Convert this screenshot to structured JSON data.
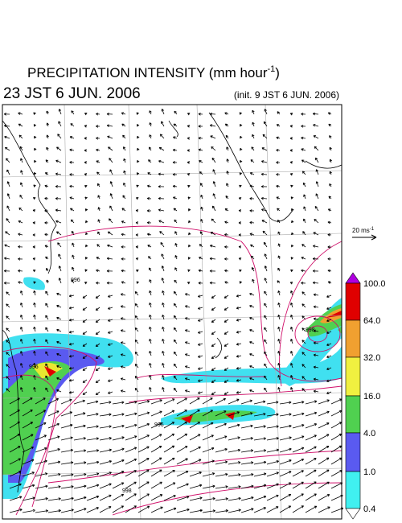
{
  "header": {
    "title": "PRECIPITATION INTENSITY (mm hour",
    "title_exponent": "-1",
    "title_end": ")",
    "valid_time": "23 JST 6 JUN. 2006",
    "init_time": "(init. 9 JST 6 JUN. 2006)"
  },
  "wind_scale": {
    "label": "20 ms",
    "exponent": "-1"
  },
  "colorbar": {
    "labels": [
      "100.0",
      "64.0",
      "32.0",
      "16.0",
      "4.0",
      "1.0",
      "0.4"
    ]
  },
  "isobar_labels": [
    "996",
    "996",
    "998",
    "996",
    "998"
  ]
}
